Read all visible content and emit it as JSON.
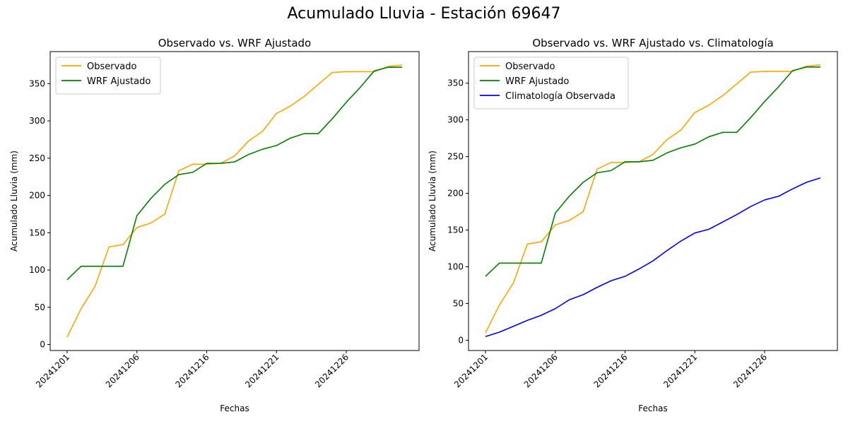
{
  "figure": {
    "suptitle": "Acumulado Lluvia - Estación 69647"
  },
  "chart_data": [
    {
      "type": "line",
      "title": "Observado vs. WRF Ajustado",
      "xlabel": "Fechas",
      "ylabel": "Acumulado Lluvia (mm)",
      "x": [
        1,
        2,
        3,
        4,
        5,
        6,
        7,
        8,
        9,
        10,
        11,
        12,
        13,
        14,
        15,
        16,
        17,
        18,
        19,
        20,
        21,
        22,
        23,
        24,
        25
      ],
      "xticks": [
        {
          "x": 1,
          "label": "20241201"
        },
        {
          "x": 6,
          "label": "20241206"
        },
        {
          "x": 11,
          "label": "20241216"
        },
        {
          "x": 16,
          "label": "20241221"
        },
        {
          "x": 21,
          "label": "20241226"
        }
      ],
      "ylim": [
        -8,
        393
      ],
      "yticks": [
        0,
        50,
        100,
        150,
        200,
        250,
        300,
        350
      ],
      "legend_position": "top-left",
      "series": [
        {
          "name": "Observado",
          "color": "#FFA500",
          "values": [
            10,
            48,
            78,
            131,
            134,
            157,
            163,
            175,
            233,
            242,
            242,
            243,
            253,
            273,
            286,
            310,
            320,
            333,
            349,
            365,
            366,
            366,
            366,
            373,
            375
          ]
        },
        {
          "name": "WRF Ajustado",
          "color": "#008000",
          "values": [
            87,
            105,
            105,
            105,
            105,
            173,
            196,
            215,
            228,
            231,
            243,
            243,
            245,
            255,
            262,
            267,
            277,
            283,
            283,
            303,
            325,
            345,
            367,
            372,
            372
          ]
        }
      ]
    },
    {
      "type": "line",
      "title": "Observado vs. WRF Ajustado vs. Climatología",
      "xlabel": "Fechas",
      "ylabel": "Acumulado Lluvia (mm)",
      "x": [
        1,
        2,
        3,
        4,
        5,
        6,
        7,
        8,
        9,
        10,
        11,
        12,
        13,
        14,
        15,
        16,
        17,
        18,
        19,
        20,
        21,
        22,
        23,
        24,
        25
      ],
      "xticks": [
        {
          "x": 1,
          "label": "20241201"
        },
        {
          "x": 6,
          "label": "20241206"
        },
        {
          "x": 11,
          "label": "20241216"
        },
        {
          "x": 16,
          "label": "20241221"
        },
        {
          "x": 21,
          "label": "20241226"
        }
      ],
      "ylim": [
        -14,
        393
      ],
      "yticks": [
        0,
        50,
        100,
        150,
        200,
        250,
        300,
        350
      ],
      "legend_position": "top-left",
      "series": [
        {
          "name": "Observado",
          "color": "#FFA500",
          "values": [
            10,
            48,
            78,
            131,
            134,
            157,
            163,
            175,
            233,
            242,
            242,
            243,
            253,
            273,
            286,
            310,
            320,
            333,
            349,
            365,
            366,
            366,
            366,
            373,
            375
          ]
        },
        {
          "name": "WRF Ajustado",
          "color": "#008000",
          "values": [
            87,
            105,
            105,
            105,
            105,
            173,
            196,
            215,
            228,
            231,
            243,
            243,
            245,
            255,
            262,
            267,
            277,
            283,
            283,
            303,
            325,
            345,
            367,
            372,
            372
          ]
        },
        {
          "name": "Climatología Observada",
          "color": "#0000FF",
          "values": [
            5,
            11,
            19,
            27,
            34,
            43,
            55,
            62,
            72,
            81,
            87,
            97,
            108,
            122,
            135,
            146,
            151,
            161,
            171,
            182,
            191,
            196,
            206,
            215,
            221
          ]
        }
      ]
    }
  ]
}
